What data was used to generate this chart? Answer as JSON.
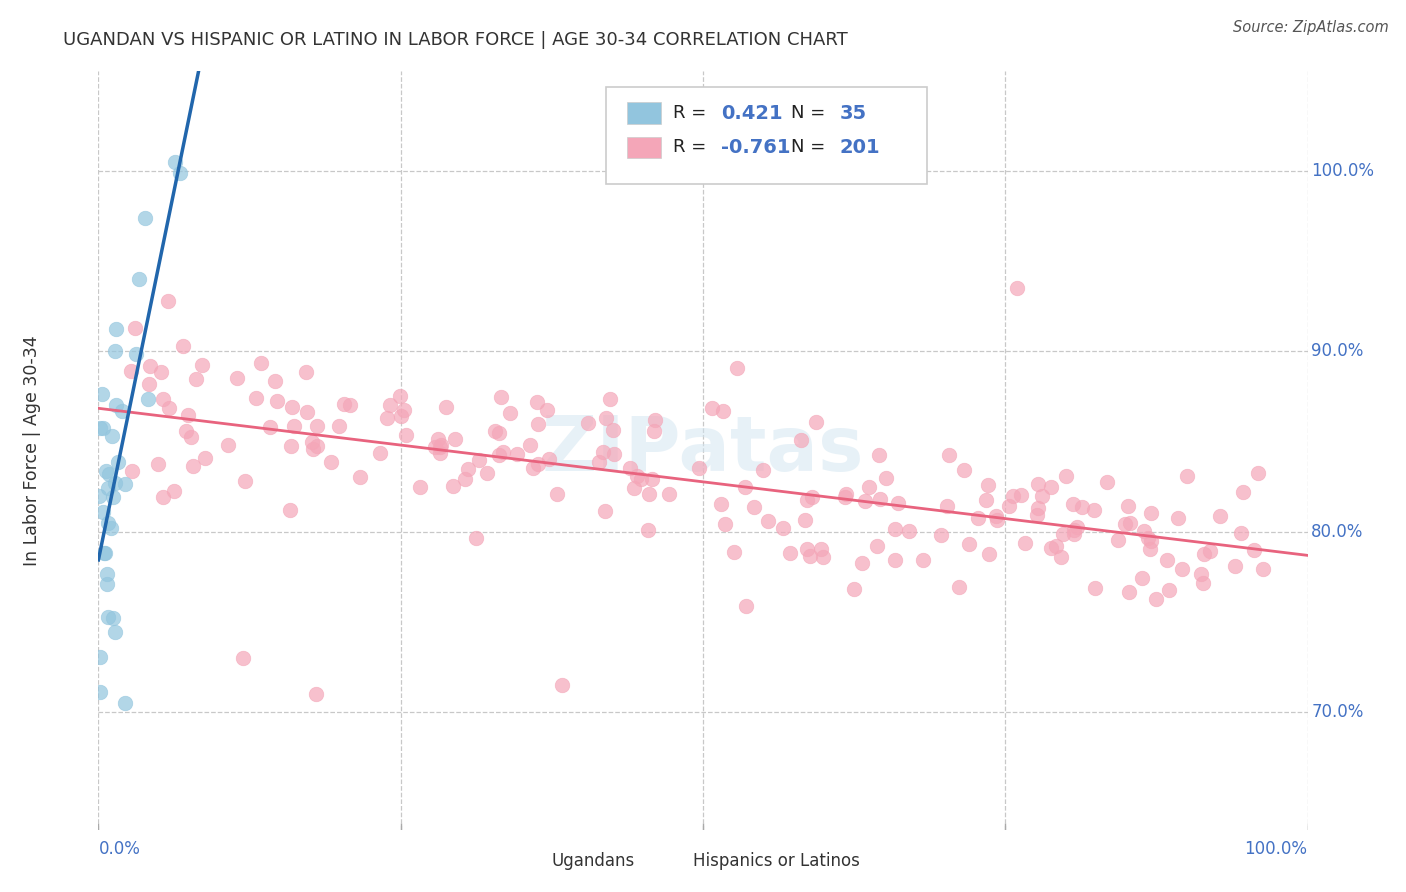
{
  "title": "UGANDAN VS HISPANIC OR LATINO IN LABOR FORCE | AGE 30-34 CORRELATION CHART",
  "source": "Source: ZipAtlas.com",
  "ylabel": "In Labor Force | Age 30-34",
  "legend_blue_r": "0.421",
  "legend_blue_n": "35",
  "legend_pink_r": "-0.761",
  "legend_pink_n": "201",
  "blue_color": "#92c5de",
  "blue_line_color": "#2166ac",
  "pink_color": "#f4a6b8",
  "pink_line_color": "#e8637e",
  "title_color": "#333333",
  "axis_color": "#4472C4",
  "grid_color": "#c8c8c8",
  "background_color": "#ffffff",
  "watermark": "ZIPatas",
  "xlim": [
    0.0,
    1.0
  ],
  "ylim": [
    0.635,
    1.055
  ],
  "y_ticks": [
    0.7,
    0.8,
    0.9,
    1.0
  ],
  "y_tick_labels": [
    "70.0%",
    "80.0%",
    "90.0%",
    "100.0%"
  ]
}
